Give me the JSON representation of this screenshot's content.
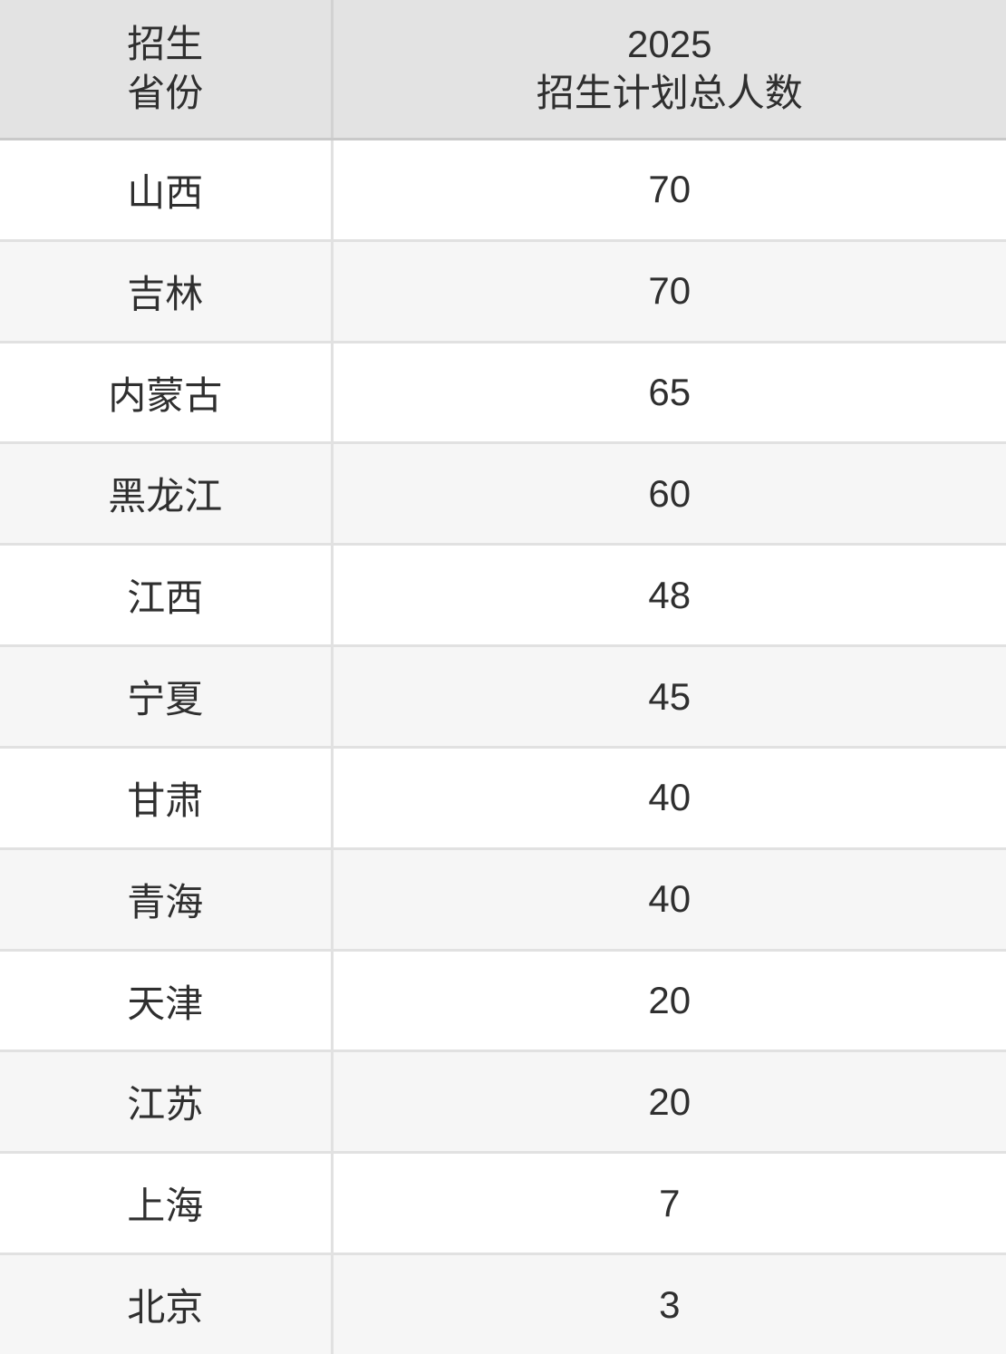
{
  "header": {
    "col1": {
      "line1": "招生",
      "line2": "省份"
    },
    "col2": {
      "line1": "2025",
      "line2": "招生计划总人数"
    }
  },
  "rows": [
    {
      "province": "山西",
      "count": "70"
    },
    {
      "province": "吉林",
      "count": "70"
    },
    {
      "province": "内蒙古",
      "count": "65"
    },
    {
      "province": "黑龙江",
      "count": "60"
    },
    {
      "province": "江西",
      "count": "48"
    },
    {
      "province": "宁夏",
      "count": "45"
    },
    {
      "province": "甘肃",
      "count": "40"
    },
    {
      "province": "青海",
      "count": "40"
    },
    {
      "province": "天津",
      "count": "20"
    },
    {
      "province": "江苏",
      "count": "20"
    },
    {
      "province": "上海",
      "count": "7"
    },
    {
      "province": "北京",
      "count": "3"
    }
  ],
  "colors": {
    "header_bg": "#e3e3e3",
    "row_bg": "#ffffff",
    "row_alt_bg": "#f6f6f6",
    "header_border": "#c9c9c9",
    "body_border": "#e1e1e1",
    "text": "#2f2f2f"
  },
  "chart_data": {
    "type": "table",
    "columns": [
      "招生省份",
      "2025招生计划总人数"
    ],
    "rows": [
      [
        "山西",
        70
      ],
      [
        "吉林",
        70
      ],
      [
        "内蒙古",
        65
      ],
      [
        "黑龙江",
        60
      ],
      [
        "江西",
        48
      ],
      [
        "宁夏",
        45
      ],
      [
        "甘肃",
        40
      ],
      [
        "青海",
        40
      ],
      [
        "天津",
        20
      ],
      [
        "江苏",
        20
      ],
      [
        "上海",
        7
      ],
      [
        "北京",
        3
      ]
    ],
    "layout": {
      "header_row": true,
      "zebra_striping": true,
      "alignment": "center"
    }
  }
}
